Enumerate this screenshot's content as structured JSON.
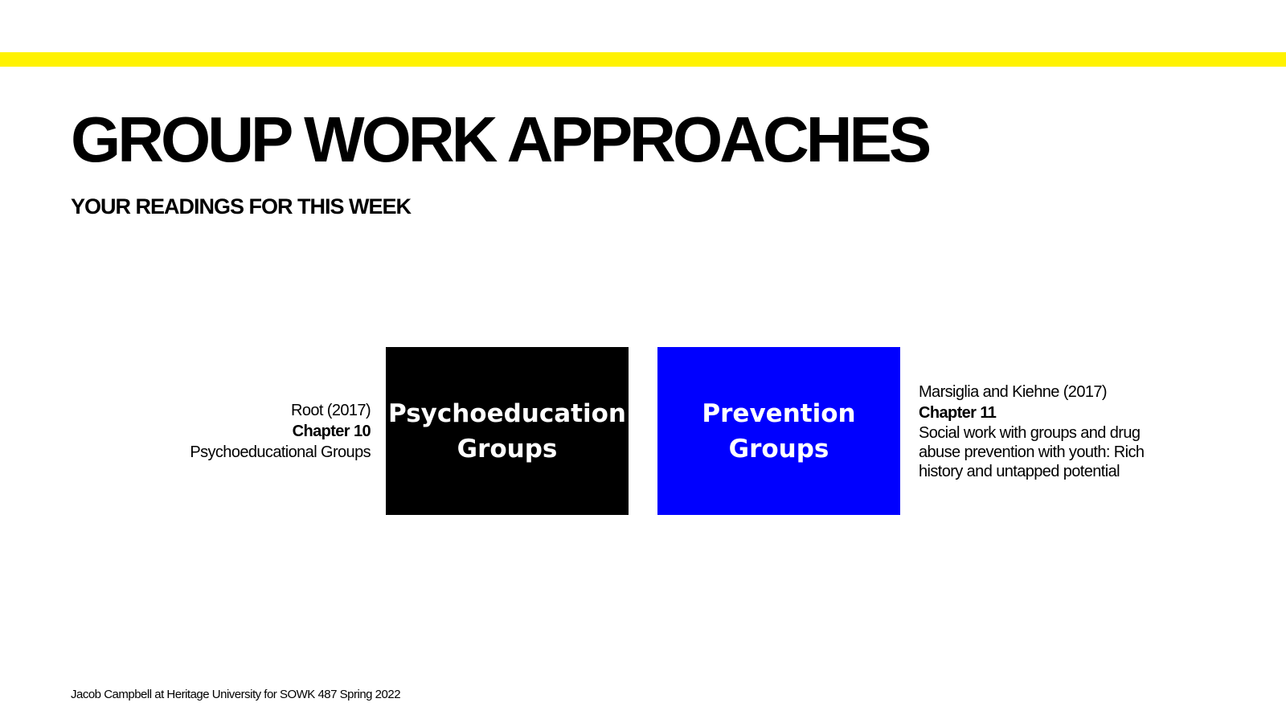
{
  "slide": {
    "title": "GROUP WORK APPROACHES",
    "subtitle": "YOUR READINGS FOR THIS WEEK",
    "accent_color": "#fff200"
  },
  "readings": {
    "left": {
      "author": "Root (2017)",
      "chapter": "Chapter 10",
      "description": "Psychoeducational Groups"
    },
    "right": {
      "author": "Marsiglia and Kiehne (2017)",
      "chapter": "Chapter 11",
      "description": "Social work with groups and drug abuse prevention with youth: Rich history and untapped potential"
    }
  },
  "boxes": [
    {
      "line1": "Psychoeducation",
      "line2": "Groups",
      "color": "#000000"
    },
    {
      "line1": "Prevention",
      "line2": "Groups",
      "color": "#0000ff"
    }
  ],
  "footer": {
    "text": "Jacob Campbell at Heritage University for SOWK 487 Spring 2022"
  }
}
